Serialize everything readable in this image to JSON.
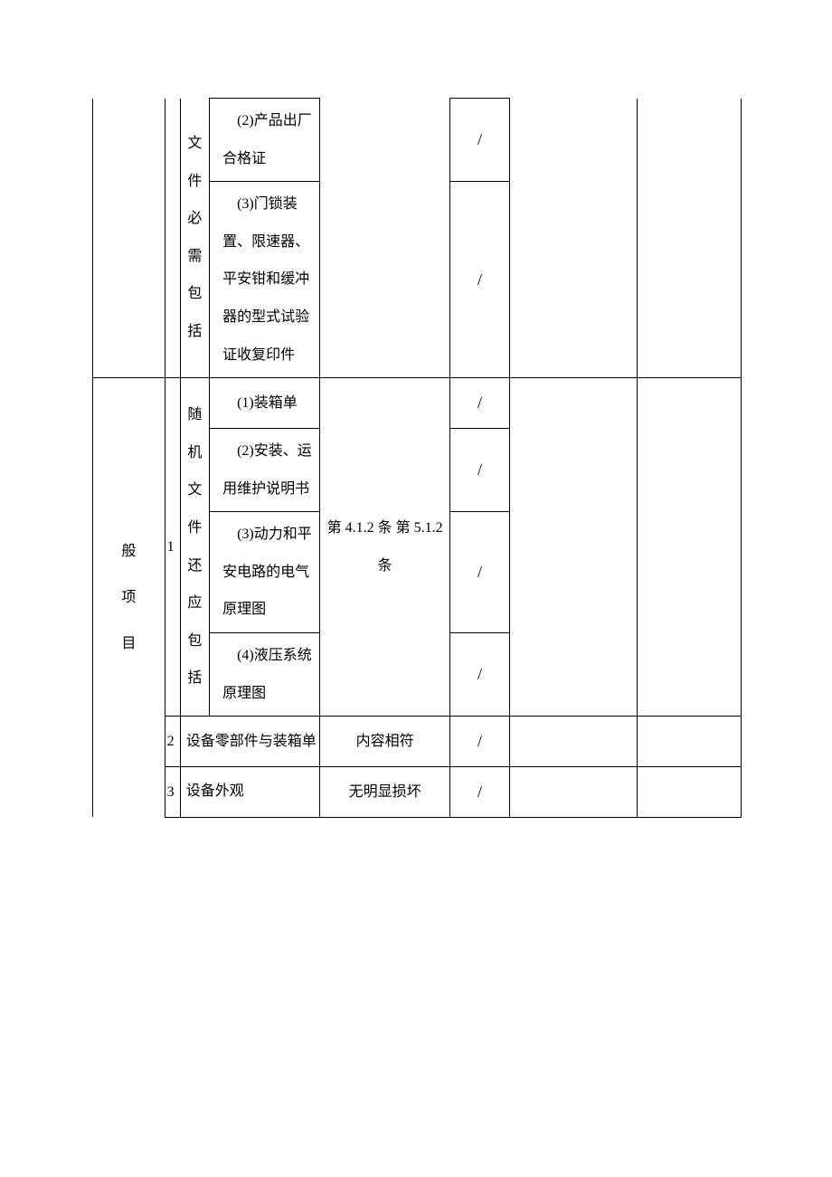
{
  "table": {
    "col0_cat": "般项目",
    "section1": {
      "vert_label": "文件必需包括",
      "r1_content": "(2)产品出厂合格证",
      "r1_check": "/",
      "r2_content": "(3)门锁装置、限速器、平安钳和缓冲器的型式试验证收复印件",
      "r2_check": "/"
    },
    "section2": {
      "idx": "1",
      "vert_label": "随机文件还应包括",
      "r1_content": "(1)装箱单",
      "r1_check": "/",
      "r2_content": "(2)安装、运用维护说明书",
      "r2_check": "/",
      "r3_content": "(3)动力和平安电路的电气原理图",
      "r3_check": "/",
      "r4_content": "(4)液压系统原理图",
      "r4_check": "/",
      "standard": "第 4.1.2 条 第 5.1.2 条"
    },
    "row3": {
      "idx": "2",
      "content": "设备零部件与装箱单",
      "standard": "内容相符",
      "check": "/"
    },
    "row4": {
      "idx": "3",
      "content": "设备外观",
      "standard": "无明显损坏",
      "check": "/"
    }
  }
}
